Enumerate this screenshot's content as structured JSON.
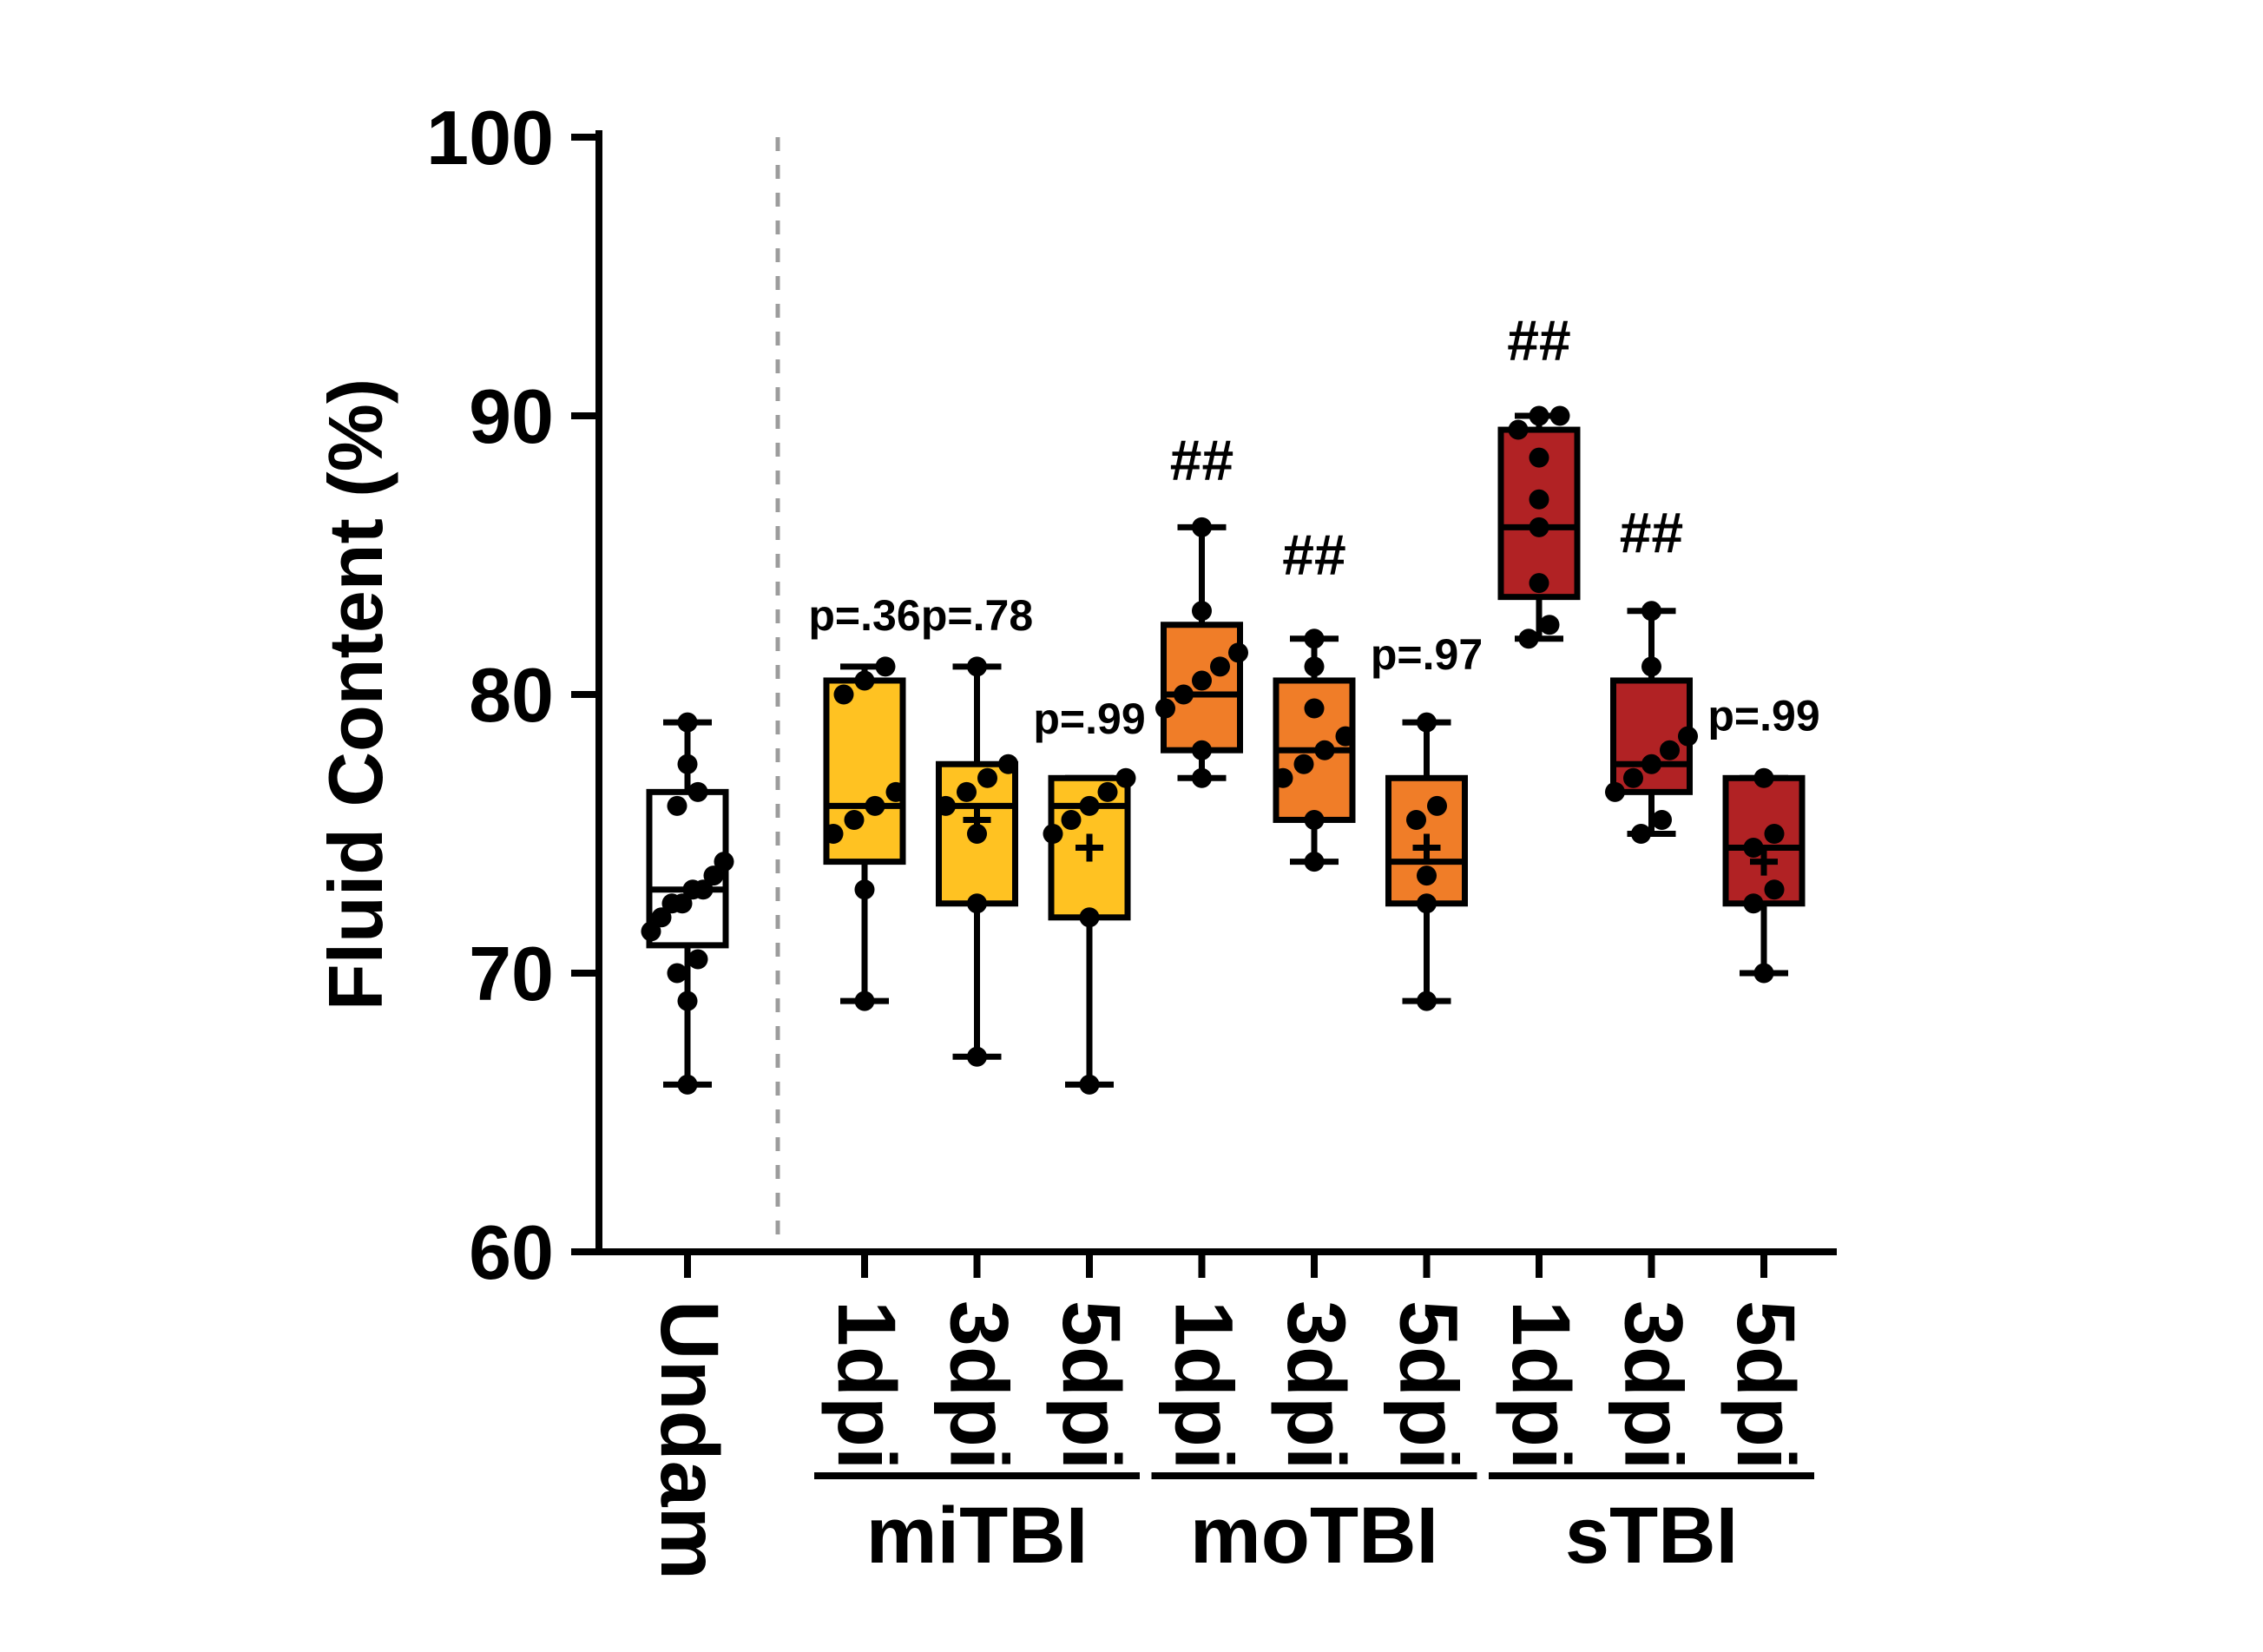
{
  "colors": {
    "separator": "#9C9C9C",
    "axis": "#000000",
    "points": "#000000",
    "background": "#FFFFFF"
  },
  "chart_data": {
    "type": "boxplot",
    "title": "",
    "ylabel": "Fluid Content (%)",
    "xlabel": "",
    "ylim": [
      60,
      100
    ],
    "yticks": [
      60,
      70,
      80,
      90,
      100
    ],
    "grid": false,
    "legend": "none",
    "separator_after_first_column": true,
    "series_colors": {
      "undam": "#FFFFFF",
      "miTBI": "#FFC222",
      "moTBI": "#F07D28",
      "sTBI": "#B12224"
    },
    "columns": [
      {
        "label": "Undam",
        "group": null,
        "color_key": "undam",
        "lo": 66,
        "q1": 71,
        "median": 73,
        "q3": 76.5,
        "hi": 79,
        "points": [
          66,
          69,
          70,
          70.5,
          71.5,
          72,
          72.5,
          72.5,
          73,
          73,
          73.5,
          74,
          76,
          76.5,
          77.5,
          79
        ],
        "plus": null,
        "annotation": null,
        "annotation_y": null
      },
      {
        "label": "1dpi",
        "group": "miTBI",
        "color_key": "miTBI",
        "lo": 69,
        "q1": 74,
        "median": 76,
        "q3": 80.5,
        "hi": 81,
        "points": [
          69,
          73,
          75,
          75.5,
          76,
          76.5,
          80,
          80.5,
          81
        ],
        "plus": null,
        "annotation": "p=.36",
        "annotation_y": 82.3
      },
      {
        "label": "3dpi",
        "group": "miTBI",
        "color_key": "miTBI",
        "lo": 67,
        "q1": 72.5,
        "median": 76,
        "q3": 77.5,
        "hi": 81,
        "points": [
          67,
          72.5,
          75,
          76,
          76.5,
          77,
          77.5,
          81
        ],
        "plus": 75.5,
        "annotation": "p=.78",
        "annotation_y": 82.3
      },
      {
        "label": "5dpi",
        "group": "miTBI",
        "color_key": "miTBI",
        "lo": 66,
        "q1": 72,
        "median": 76,
        "q3": 77,
        "hi": 77,
        "points": [
          66,
          72,
          75,
          75.5,
          76,
          76.5,
          77
        ],
        "plus": 74.5,
        "annotation": "p=.99",
        "annotation_y": 78.6
      },
      {
        "label": "1dpi",
        "group": "moTBI",
        "color_key": "moTBI",
        "lo": 77,
        "q1": 78,
        "median": 80,
        "q3": 82.5,
        "hi": 86,
        "points": [
          77,
          78,
          79.5,
          80,
          80.5,
          81,
          81.5,
          83,
          86
        ],
        "plus": null,
        "annotation": "##",
        "annotation_y": 87.7
      },
      {
        "label": "3dpi",
        "group": "moTBI",
        "color_key": "moTBI",
        "lo": 74,
        "q1": 75.5,
        "median": 78,
        "q3": 80.5,
        "hi": 82,
        "points": [
          74,
          75.5,
          77,
          77.5,
          78,
          78.5,
          79.5,
          81,
          82
        ],
        "plus": null,
        "annotation": "##",
        "annotation_y": 84.3
      },
      {
        "label": "5dpi",
        "group": "moTBI",
        "color_key": "moTBI",
        "lo": 69,
        "q1": 72.5,
        "median": 74,
        "q3": 77,
        "hi": 79,
        "points": [
          69,
          72.5,
          73.5,
          75.5,
          76,
          79
        ],
        "plus": 74.5,
        "annotation": "p=.97",
        "annotation_y": 80.9
      },
      {
        "label": "1dpi",
        "group": "sTBI",
        "color_key": "sTBI",
        "lo": 82,
        "q1": 83.5,
        "median": 86,
        "q3": 89.5,
        "hi": 90,
        "points": [
          82,
          82.5,
          84,
          86,
          87,
          88.5,
          89.5,
          90,
          90
        ],
        "plus": null,
        "annotation": "##",
        "annotation_y": 92
      },
      {
        "label": "3dpi",
        "group": "sTBI",
        "color_key": "sTBI",
        "lo": 75,
        "q1": 76.5,
        "median": 77.5,
        "q3": 80.5,
        "hi": 83,
        "points": [
          75,
          75.5,
          76.5,
          77,
          77.5,
          78,
          78.5,
          81,
          83
        ],
        "plus": null,
        "annotation": "##",
        "annotation_y": 85.1
      },
      {
        "label": "5dpi",
        "group": "sTBI",
        "color_key": "sTBI",
        "lo": 70,
        "q1": 72.5,
        "median": 74.5,
        "q3": 77,
        "hi": 77,
        "points": [
          70,
          72.5,
          73,
          74.5,
          75,
          77
        ],
        "plus": 74,
        "annotation": "p=.99",
        "annotation_y": 78.7
      }
    ],
    "group_labels": [
      {
        "label": "miTBI",
        "from": 1,
        "to": 3
      },
      {
        "label": "moTBI",
        "from": 4,
        "to": 6
      },
      {
        "label": "sTBI",
        "from": 7,
        "to": 9
      }
    ]
  }
}
